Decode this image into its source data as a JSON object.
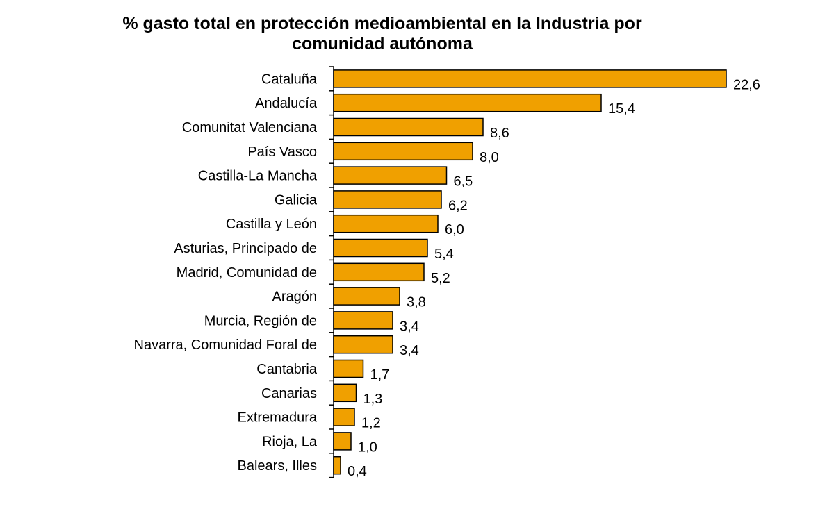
{
  "chart_data": {
    "type": "bar",
    "orientation": "horizontal",
    "title_lines": [
      "% gasto total en protección medioambiental en la Industria por",
      "comunidad  autónoma"
    ],
    "categories": [
      "Cataluña",
      "Andalucía",
      "Comunitat Valenciana",
      "País Vasco",
      "Castilla-La Mancha",
      "Galicia",
      "Castilla y León",
      "Asturias, Principado de",
      "Madrid, Comunidad de",
      "Aragón",
      "Murcia, Región de",
      "Navarra, Comunidad Foral de",
      "Cantabria",
      "Canarias",
      "Extremadura",
      "Rioja, La",
      "Balears, Illes"
    ],
    "values": [
      22.6,
      15.4,
      8.6,
      8.0,
      6.5,
      6.2,
      6.0,
      5.4,
      5.2,
      3.8,
      3.4,
      3.4,
      1.7,
      1.3,
      1.2,
      1.0,
      0.4
    ],
    "value_labels": [
      "22,6",
      "15,4",
      "8,6",
      "8,0",
      "6,5",
      "6,2",
      "6,0",
      "5,4",
      "5,2",
      "3,8",
      "3,4",
      "3,4",
      "1,7",
      "1,3",
      "1,2",
      "1,0",
      "0,4"
    ],
    "xlim": [
      0,
      22.6
    ],
    "grid": false,
    "legend": "none",
    "bar_color": "#F0A000",
    "bar_border_color": "#000000"
  }
}
